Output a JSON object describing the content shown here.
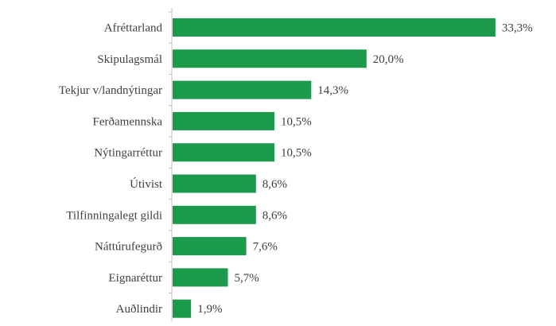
{
  "chart_data": {
    "type": "bar",
    "orientation": "horizontal",
    "categories": [
      "Afréttarland",
      "Skipulagsmál",
      "Tekjur v/landnýtingar",
      "Ferðamennska",
      "Nýtingarréttur",
      "Útivist",
      "Tilfinningalegt gildi",
      "Náttúrufegurð",
      "Eignaréttur",
      "Auðlindir"
    ],
    "values": [
      33.3,
      20.0,
      14.3,
      10.5,
      10.5,
      8.6,
      8.6,
      7.6,
      5.7,
      1.9
    ],
    "value_labels": [
      "33,3%",
      "20,0%",
      "14,3%",
      "10,5%",
      "10,5%",
      "8,6%",
      "8,6%",
      "7,6%",
      "5,7%",
      "1,9%"
    ],
    "xlim": [
      0,
      35
    ],
    "grid": false,
    "legend": "none",
    "bar_color": "#1c9a4b",
    "axis_color": "#bfbfbf",
    "text_color": "#3f3f3f"
  }
}
